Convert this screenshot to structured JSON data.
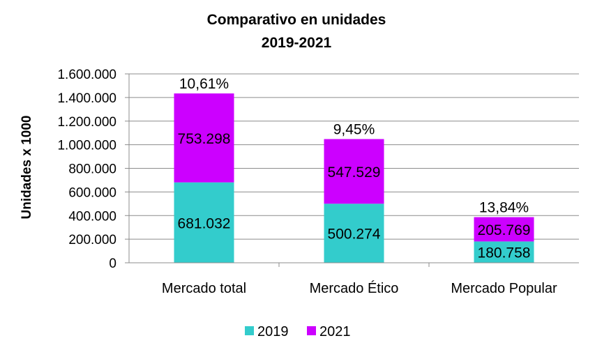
{
  "chart_data": {
    "type": "bar",
    "stacked": true,
    "title_lines": [
      "Comparativo  en unidades",
      "2019-2021"
    ],
    "xlabel": "",
    "ylabel": "Unidades x 1000",
    "ylim": [
      0,
      1600000
    ],
    "y_ticks": [
      {
        "value": 0,
        "label": "0"
      },
      {
        "value": 200000,
        "label": "200.000"
      },
      {
        "value": 400000,
        "label": "400.000"
      },
      {
        "value": 600000,
        "label": "600.000"
      },
      {
        "value": 800000,
        "label": "800.000"
      },
      {
        "value": 1000000,
        "label": "1.000.000"
      },
      {
        "value": 1200000,
        "label": "1.200.000"
      },
      {
        "value": 1400000,
        "label": "1.400.000"
      },
      {
        "value": 1600000,
        "label": "1.600.000"
      }
    ],
    "grid": true,
    "legend_position": "bottom",
    "categories": [
      "Mercado total",
      "Mercado Ético",
      "Mercado Popular"
    ],
    "series": [
      {
        "name": "2019",
        "color": "#33CCCC",
        "values": [
          681032,
          500274,
          180758
        ],
        "labels": [
          "681.032",
          "500.274",
          "180.758"
        ]
      },
      {
        "name": "2021",
        "color": "#CC00FF",
        "values": [
          753298,
          547529,
          205769
        ],
        "labels": [
          "753.298",
          "547.529",
          "205.769"
        ]
      }
    ],
    "growth_labels": [
      "10,61%",
      "9,45%",
      "13,84%"
    ]
  }
}
